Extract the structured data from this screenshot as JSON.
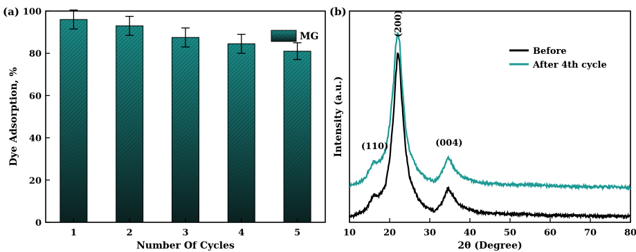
{
  "chart_data": [
    {
      "type": "bar",
      "panel_label": "(a)",
      "categories": [
        "1",
        "2",
        "3",
        "4",
        "5"
      ],
      "values": [
        96,
        93,
        87.5,
        84.5,
        81
      ],
      "errors": [
        4.5,
        4.5,
        4.5,
        4.5,
        4
      ],
      "xlabel": "Number Of Cycles",
      "ylabel": "Dye Adsorption, %",
      "ylim": [
        0,
        100
      ],
      "yticks": [
        0,
        20,
        40,
        60,
        80,
        100
      ],
      "legend": {
        "label": "MG",
        "placement": "top-right"
      },
      "bar_color_top": "#1a8a86",
      "bar_color_bottom": "#0b2322",
      "grid": false
    },
    {
      "type": "line",
      "panel_label": "(b)",
      "xlabel": "2θ (Degree)",
      "ylabel": "Intensity (a.u.)",
      "xlim": [
        10,
        80
      ],
      "xticks": [
        10,
        20,
        30,
        40,
        50,
        60,
        70,
        80
      ],
      "show_yticks": false,
      "grid": false,
      "legend_placement": "top-right",
      "series": [
        {
          "name": "Before",
          "color": "#000000",
          "x": [
            10,
            12,
            14,
            15,
            16,
            17,
            18,
            19,
            20,
            21,
            21.5,
            22,
            22.5,
            23,
            24,
            25,
            27,
            29,
            31,
            32,
            33,
            34,
            34.5,
            35,
            36,
            37,
            38,
            40,
            42,
            45,
            50,
            55,
            60,
            65,
            70,
            75,
            80
          ],
          "y": [
            5,
            7,
            11,
            17,
            24,
            23,
            26,
            33,
            55,
            95,
            126,
            149,
            140,
            109,
            64,
            39,
            21,
            13,
            10,
            12,
            17,
            25,
            30,
            28,
            22,
            17,
            14,
            11,
            9,
            8,
            7,
            7,
            6,
            6,
            5.5,
            5.5,
            5
          ]
        },
        {
          "name": "After 4th cycle",
          "color": "#1f9a95",
          "x": [
            10,
            12,
            14,
            15,
            16,
            17,
            18,
            19,
            20,
            21,
            21.5,
            22,
            22.5,
            23,
            24,
            25,
            27,
            29,
            31,
            32,
            33,
            34,
            34.5,
            35,
            36,
            37,
            38,
            40,
            42,
            45,
            50,
            55,
            60,
            65,
            70,
            75,
            80
          ],
          "y": [
            32,
            34,
            39,
            46,
            53,
            52,
            55,
            63,
            85,
            123,
            155,
            166,
            158,
            127,
            82,
            62,
            46,
            39,
            36,
            38,
            44,
            52,
            57,
            55,
            48,
            43,
            40,
            37,
            35,
            34,
            33,
            33,
            32,
            31.5,
            31,
            31,
            30.5
          ]
        }
      ],
      "annotations": [
        {
          "text": "(110)",
          "x": 16.3,
          "y": 64
        },
        {
          "text": "(200)",
          "x": 22,
          "y": 174
        },
        {
          "text": "(004)",
          "x": 34.8,
          "y": 67
        }
      ],
      "ylim": [
        0,
        185
      ]
    }
  ]
}
